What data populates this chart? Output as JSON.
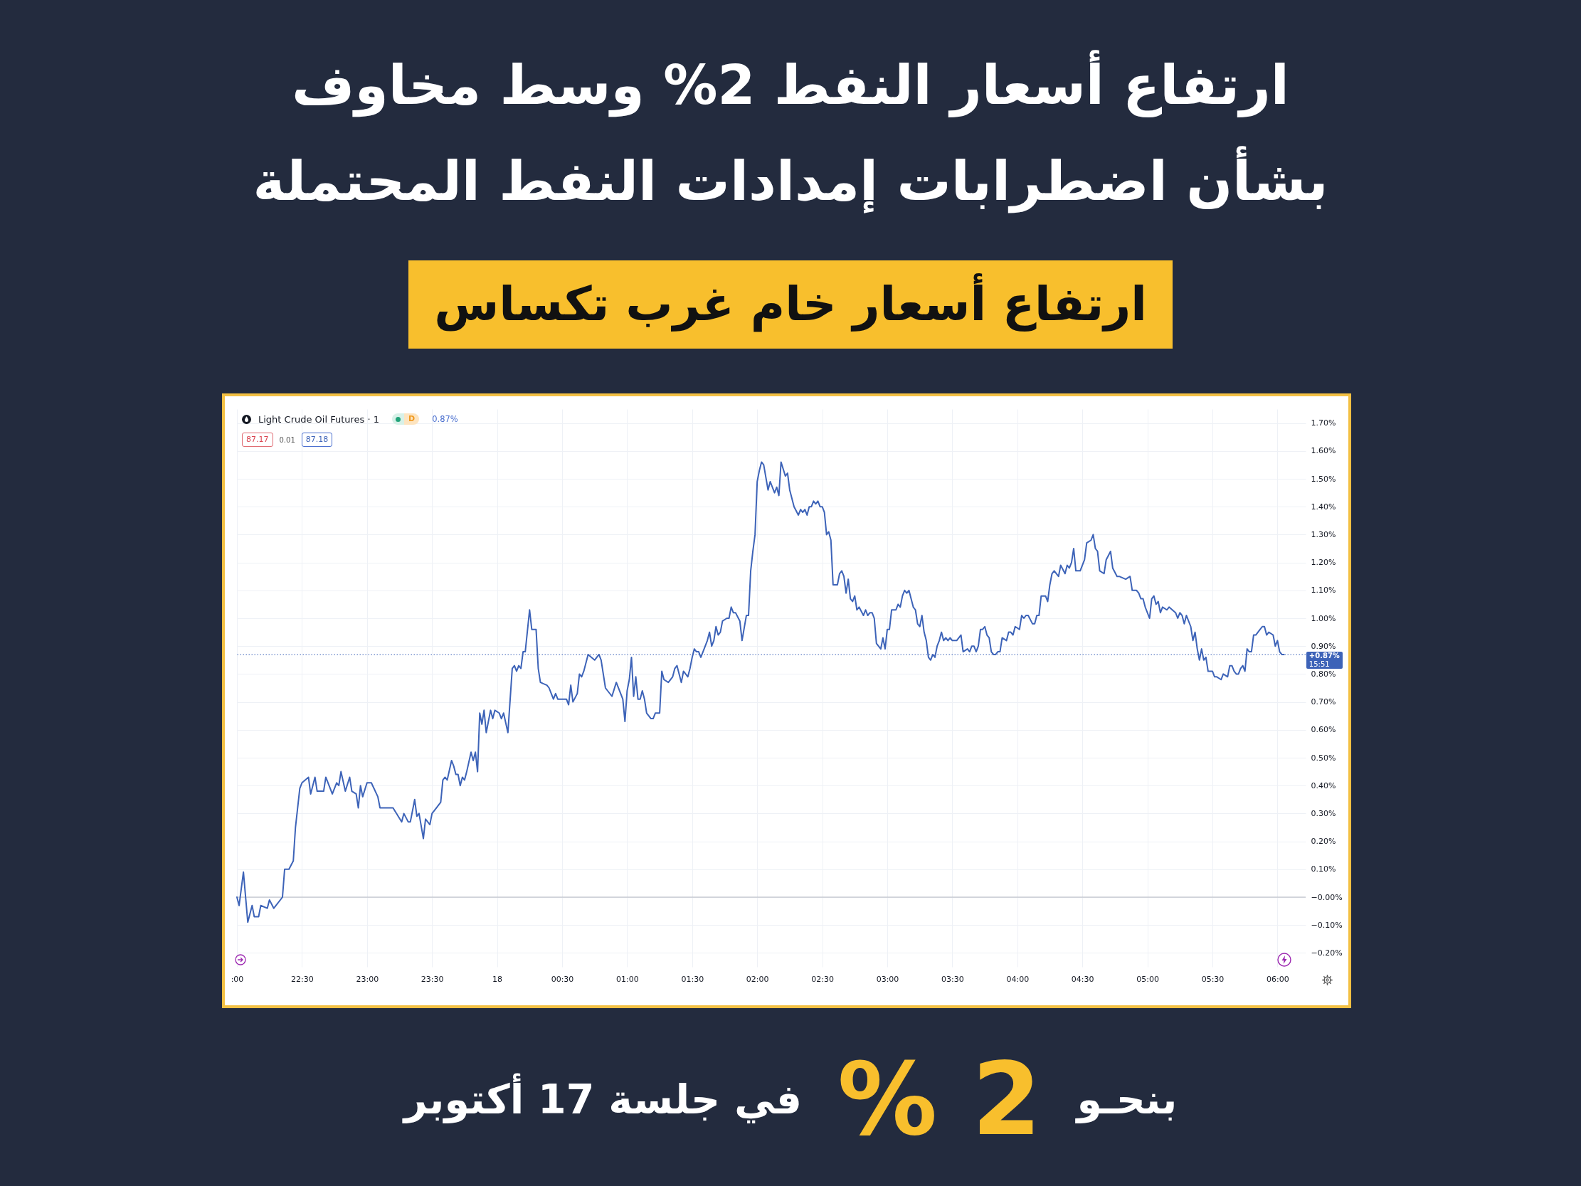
{
  "chart_data": {
    "type": "line",
    "title": "ارتفاع أسعار النفط 2% وسط مخاوف بشأن اضطرابات إمدادات النفط المحتملة",
    "subtitle": "ارتفاع أسعار خام غرب تكساس",
    "x": [
      "--10-17T22:00",
      "--10-17T22:01",
      "--10-17T22:03",
      "--10-17T22:05",
      "--10-17T22:07",
      "--10-17T22:08",
      "--10-17T22:10",
      "--10-17T22:11",
      "--10-17T22:14",
      "--10-17T22:15",
      "--10-17T22:17",
      "--10-17T22:21",
      "--10-17T22:22",
      "--10-17T22:24",
      "--10-17T22:26",
      "--10-17T22:27",
      "--10-17T22:29",
      "--10-17T22:30",
      "--10-17T22:33",
      "--10-17T22:34",
      "--10-17T22:36",
      "--10-17T22:37",
      "--10-17T22:40",
      "--10-17T22:41",
      "--10-17T22:44",
      "--10-17T22:46",
      "--10-17T22:47",
      "--10-17T22:48",
      "--10-17T22:50",
      "--10-17T22:52",
      "--10-17T22:53",
      "--10-17T22:55",
      "--10-17T22:56",
      "--10-17T22:57",
      "--10-17T22:58",
      "--10-17T23:00",
      "--10-17T23:02",
      "--10-17T23:05",
      "--10-17T23:06",
      "--10-17T23:12",
      "--10-17T23:16",
      "--10-17T23:17",
      "--10-17T23:19",
      "--10-17T23:20",
      "--10-17T23:22",
      "--10-17T23:23",
      "--10-17T23:24",
      "--10-17T23:26",
      "--10-17T23:27",
      "--10-17T23:29",
      "--10-17T23:30",
      "--10-17T23:32",
      "--10-17T23:34",
      "--10-17T23:35",
      "--10-17T23:36",
      "--10-17T23:37",
      "--10-17T23:39",
      "--10-17T23:40",
      "--10-17T23:41",
      "--10-17T23:42",
      "--10-17T23:43",
      "--10-17T23:44",
      "--10-17T23:45",
      "--10-17T23:46",
      "--10-17T23:48",
      "--10-17T23:49",
      "--10-17T23:50",
      "--10-17T23:51",
      "--10-17T23:52",
      "--10-17T23:53",
      "--10-17T23:54",
      "--10-17T23:55",
      "--10-17T23:56",
      "--10-17T23:57",
      "--10-17T23:58",
      "--10-17T23:59",
      "--10-18T00:01",
      "--10-18T00:02",
      "--10-18T00:03",
      "--10-18T00:05",
      "--10-18T00:07",
      "--10-18T00:08",
      "--10-18T00:09",
      "--10-18T00:10",
      "--10-18T00:11",
      "--10-18T00:12",
      "--10-18T00:13",
      "--10-18T00:15",
      "--10-18T00:16",
      "--10-18T00:18",
      "--10-18T00:19",
      "--10-18T00:20",
      "--10-18T00:23",
      "--10-18T00:24",
      "--10-18T00:25",
      "--10-18T00:26",
      "--10-18T00:27",
      "--10-18T00:28",
      "--10-18T00:32",
      "--10-18T00:33",
      "--10-18T00:34",
      "--10-18T00:35",
      "--10-18T00:37",
      "--10-18T00:38",
      "--10-18T00:39",
      "--10-18T00:40",
      "--10-18T00:42",
      "--10-18T00:45",
      "--10-18T00:47",
      "--10-18T00:48",
      "--10-18T00:50",
      "--10-18T00:53",
      "--10-18T00:55",
      "--10-18T00:58",
      "--10-18T00:59",
      "--10-18T01:00",
      "--10-18T01:01",
      "--10-18T01:02",
      "--10-18T01:03",
      "--10-18T01:04",
      "--10-18T01:05",
      "--10-18T01:06",
      "--10-18T01:07",
      "--10-18T01:08",
      "--10-18T01:09",
      "--10-18T01:11",
      "--10-18T01:12",
      "--10-18T01:13",
      "--10-18T01:15",
      "--10-18T01:16",
      "--10-18T01:17",
      "--10-18T01:19",
      "--10-18T01:21",
      "--10-18T01:22",
      "--10-18T01:23",
      "--10-18T01:25",
      "--10-18T01:26",
      "--10-18T01:28",
      "--10-18T01:29",
      "--10-18T01:30",
      "--10-18T01:31",
      "--10-18T01:32",
      "--10-18T01:33",
      "--10-18T01:34",
      "--10-18T01:35",
      "--10-18T01:37",
      "--10-18T01:38",
      "--10-18T01:39",
      "--10-18T01:40",
      "--10-18T01:41",
      "--10-18T01:42",
      "--10-18T01:43",
      "--10-18T01:44",
      "--10-18T01:46",
      "--10-18T01:47",
      "--10-18T01:48",
      "--10-18T01:49",
      "--10-18T01:50",
      "--10-18T01:52",
      "--10-18T01:53",
      "--10-18T01:55",
      "--10-18T01:56",
      "--10-18T01:57",
      "--10-18T01:58",
      "--10-18T01:59",
      "--10-18T02:00",
      "--10-18T02:01",
      "--10-18T02:02",
      "--10-18T02:03",
      "--10-18T02:05",
      "--10-18T02:06",
      "--10-18T02:07",
      "--10-18T02:08",
      "--10-18T02:09",
      "--10-18T02:10",
      "--10-18T02:11",
      "--10-18T02:13",
      "--10-18T02:14",
      "--10-18T02:15",
      "--10-18T02:17",
      "--10-18T02:19",
      "--10-18T02:20",
      "--10-18T02:21",
      "--10-18T02:22",
      "--10-18T02:23",
      "--10-18T02:24",
      "--10-18T02:25",
      "--10-18T02:26",
      "--10-18T02:27",
      "--10-18T02:28",
      "--10-18T02:29",
      "--10-18T02:30",
      "--10-18T02:31",
      "--10-18T02:32",
      "--10-18T02:33",
      "--10-18T02:34",
      "--10-18T02:35",
      "--10-18T02:37",
      "--10-18T02:38",
      "--10-18T02:39",
      "--10-18T02:40",
      "--10-18T02:41",
      "--10-18T02:42",
      "--10-18T02:43",
      "--10-18T02:44",
      "--10-18T02:45",
      "--10-18T02:46",
      "--10-18T02:47",
      "--10-18T02:49",
      "--10-18T02:50",
      "--10-18T02:51",
      "--10-18T02:52",
      "--10-18T02:53",
      "--10-18T02:54",
      "--10-18T02:55",
      "--10-18T02:57",
      "--10-18T02:58",
      "--10-18T02:59",
      "--10-18T03:00",
      "--10-18T03:01",
      "--10-18T03:02",
      "--10-18T03:04",
      "--10-18T03:05",
      "--10-18T03:06",
      "--10-18T03:07",
      "--10-18T03:08",
      "--10-18T03:09",
      "--10-18T03:10",
      "--10-18T03:12",
      "--10-18T03:13",
      "--10-18T03:14",
      "--10-18T03:15",
      "--10-18T03:16",
      "--10-18T03:17",
      "--10-18T03:18",
      "--10-18T03:19",
      "--10-18T03:20",
      "--10-18T03:21",
      "--10-18T03:22",
      "--10-18T03:23",
      "--10-18T03:24",
      "--10-18T03:25",
      "--10-18T03:26",
      "--10-18T03:27",
      "--10-18T03:28",
      "--10-18T03:29",
      "--10-18T03:30",
      "--10-18T03:32",
      "--10-18T03:34",
      "--10-18T03:35",
      "--10-18T03:37",
      "--10-18T03:38",
      "--10-18T03:39",
      "--10-18T03:40",
      "--10-18T03:41",
      "--10-18T03:42",
      "--10-18T03:43",
      "--10-18T03:44",
      "--10-18T03:45",
      "--10-18T03:46",
      "--10-18T03:47",
      "--10-18T03:48",
      "--10-18T03:49",
      "--10-18T03:50",
      "--10-18T03:51",
      "--10-18T03:52",
      "--10-18T03:53",
      "--10-18T03:55",
      "--10-18T03:56",
      "--10-18T03:57",
      "--10-18T03:58",
      "--10-18T03:59",
      "--10-18T04:01",
      "--10-18T04:02",
      "--10-18T04:03",
      "--10-18T04:04",
      "--10-18T04:05",
      "--10-18T04:07",
      "--10-18T04:08",
      "--10-18T04:09",
      "--10-18T04:10",
      "--10-18T04:11",
      "--10-18T04:13",
      "--10-18T04:14",
      "--10-18T04:15",
      "--10-18T04:16",
      "--10-18T04:17",
      "--10-18T04:19",
      "--10-18T04:20",
      "--10-18T04:22",
      "--10-18T04:23",
      "--10-18T04:24",
      "--10-18T04:25",
      "--10-18T04:26",
      "--10-18T04:27",
      "--10-18T04:29",
      "--10-18T04:31",
      "--10-18T04:32",
      "--10-18T04:34",
      "--10-18T04:35",
      "--10-18T04:36",
      "--10-18T04:37",
      "--10-18T04:38",
      "--10-18T04:40",
      "--10-18T04:41",
      "--10-18T04:43",
      "--10-18T04:44",
      "--10-18T04:46",
      "--10-18T04:47",
      "--10-18T04:50",
      "--10-18T04:52",
      "--10-18T04:53",
      "--10-18T04:55",
      "--10-18T04:56",
      "--10-18T04:57",
      "--10-18T04:58",
      "--10-18T04:59",
      "--10-18T05:01",
      "--10-18T05:02",
      "--10-18T05:03",
      "--10-18T05:04",
      "--10-18T05:05",
      "--10-18T05:06",
      "--10-18T05:07",
      "--10-18T05:09",
      "--10-18T05:10",
      "--10-18T05:13",
      "--10-18T05:14",
      "--10-18T05:15",
      "--10-18T05:16",
      "--10-18T05:17",
      "--10-18T05:18",
      "--10-18T05:20",
      "--10-18T05:21",
      "--10-18T05:22",
      "--10-18T05:23",
      "--10-18T05:24",
      "--10-18T05:25",
      "--10-18T05:26",
      "--10-18T05:27",
      "--10-18T05:28",
      "--10-18T05:30",
      "--10-18T05:31",
      "--10-18T05:32",
      "--10-18T05:34",
      "--10-18T05:35",
      "--10-18T05:37",
      "--10-18T05:38",
      "--10-18T05:39",
      "--10-18T05:40",
      "--10-18T05:41",
      "--10-18T05:42",
      "--10-18T05:43",
      "--10-18T05:44",
      "--10-18T05:45",
      "--10-18T05:46",
      "--10-18T05:47",
      "--10-18T05:48",
      "--10-18T05:49",
      "--10-18T05:50",
      "--10-18T05:52",
      "--10-18T05:53",
      "--10-18T05:54",
      "--10-18T05:55",
      "--10-18T05:56",
      "--10-18T05:58",
      "--10-18T05:59",
      "--10-18T06:00",
      "--10-18T06:01",
      "--10-18T06:02",
      "--10-18T06:03"
    ],
    "series": [
      {
        "color": "#3d63b8",
        "values": [
          0,
          -0.03,
          0.09,
          -0.09,
          -0.03,
          -0.07,
          -0.07,
          -0.03,
          -0.04,
          -0.01,
          -0.04,
          0,
          0.1,
          0.1,
          0.13,
          0.25,
          0.39,
          0.41,
          0.43,
          0.37,
          0.43,
          0.38,
          0.38,
          0.43,
          0.37,
          0.41,
          0.4,
          0.45,
          0.38,
          0.43,
          0.38,
          0.37,
          0.32,
          0.4,
          0.36,
          0.41,
          0.41,
          0.36,
          0.32,
          0.32,
          0.27,
          0.3,
          0.27,
          0.27,
          0.35,
          0.29,
          0.3,
          0.21,
          0.28,
          0.26,
          0.3,
          0.32,
          0.34,
          0.42,
          0.43,
          0.42,
          0.49,
          0.47,
          0.44,
          0.44,
          0.4,
          0.43,
          0.42,
          0.45,
          0.52,
          0.49,
          0.52,
          0.45,
          0.66,
          0.62,
          0.67,
          0.59,
          0.63,
          0.67,
          0.64,
          0.67,
          0.66,
          0.64,
          0.66,
          0.59,
          0.82,
          0.83,
          0.81,
          0.83,
          0.82,
          0.88,
          0.88,
          1.03,
          0.96,
          0.96,
          0.82,
          0.77,
          0.76,
          0.75,
          0.73,
          0.71,
          0.73,
          0.71,
          0.71,
          0.69,
          0.76,
          0.7,
          0.73,
          0.8,
          0.79,
          0.81,
          0.87,
          0.85,
          0.87,
          0.85,
          0.75,
          0.72,
          0.77,
          0.71,
          0.63,
          0.74,
          0.78,
          0.86,
          0.72,
          0.79,
          0.71,
          0.71,
          0.74,
          0.71,
          0.66,
          0.64,
          0.64,
          0.66,
          0.66,
          0.81,
          0.78,
          0.77,
          0.79,
          0.82,
          0.83,
          0.77,
          0.81,
          0.79,
          0.82,
          0.86,
          0.89,
          0.88,
          0.88,
          0.86,
          0.88,
          0.92,
          0.95,
          0.9,
          0.92,
          0.97,
          0.94,
          0.95,
          0.99,
          1,
          1,
          1.04,
          1.02,
          1.02,
          0.99,
          0.92,
          1.01,
          1.01,
          1.17,
          1.24,
          1.3,
          1.49,
          1.53,
          1.56,
          1.55,
          1.46,
          1.49,
          1.47,
          1.45,
          1.47,
          1.44,
          1.56,
          1.51,
          1.52,
          1.46,
          1.4,
          1.37,
          1.39,
          1.38,
          1.39,
          1.37,
          1.4,
          1.4,
          1.42,
          1.41,
          1.42,
          1.4,
          1.4,
          1.38,
          1.3,
          1.31,
          1.28,
          1.12,
          1.12,
          1.16,
          1.17,
          1.15,
          1.09,
          1.14,
          1.07,
          1.06,
          1.08,
          1.03,
          1.04,
          1.01,
          1.03,
          1.01,
          1.02,
          1.02,
          1,
          0.91,
          0.89,
          0.93,
          0.89,
          0.96,
          0.96,
          1.03,
          1.03,
          1.05,
          1.04,
          1.08,
          1.1,
          1.09,
          1.1,
          1.04,
          1.03,
          0.98,
          0.97,
          1.01,
          0.95,
          0.92,
          0.86,
          0.85,
          0.87,
          0.86,
          0.9,
          0.92,
          0.95,
          0.92,
          0.93,
          0.92,
          0.93,
          0.92,
          0.92,
          0.94,
          0.88,
          0.89,
          0.88,
          0.9,
          0.9,
          0.88,
          0.9,
          0.96,
          0.96,
          0.97,
          0.94,
          0.93,
          0.88,
          0.87,
          0.87,
          0.88,
          0.88,
          0.93,
          0.92,
          0.95,
          0.95,
          0.94,
          0.97,
          0.96,
          1.01,
          1,
          1.01,
          1.01,
          0.98,
          0.98,
          1.01,
          1.01,
          1.08,
          1.08,
          1.06,
          1.12,
          1.16,
          1.17,
          1.15,
          1.19,
          1.16,
          1.19,
          1.18,
          1.2,
          1.25,
          1.17,
          1.17,
          1.21,
          1.27,
          1.28,
          1.3,
          1.25,
          1.24,
          1.17,
          1.16,
          1.21,
          1.24,
          1.18,
          1.15,
          1.15,
          1.14,
          1.15,
          1.1,
          1.1,
          1.09,
          1.07,
          1.07,
          1.04,
          1,
          1.07,
          1.08,
          1.05,
          1.06,
          1.02,
          1.04,
          1.03,
          1.04,
          1.02,
          1,
          1.02,
          1.01,
          0.98,
          1.01,
          0.97,
          0.92,
          0.95,
          0.89,
          0.85,
          0.89,
          0.85,
          0.86,
          0.81,
          0.81,
          0.79,
          0.79,
          0.78,
          0.8,
          0.79,
          0.83,
          0.83,
          0.81,
          0.8,
          0.8,
          0.82,
          0.83,
          0.81,
          0.89,
          0.88,
          0.88,
          0.94,
          0.94,
          0.96,
          0.97,
          0.97,
          0.94,
          0.95,
          0.94,
          0.9,
          0.92,
          0.88,
          0.87,
          0.87
        ]
      }
    ],
    "xlim": [
      "--10-17T22:00",
      "--10-18T06:13"
    ],
    "xticks": [
      {
        "value": "--10-17T22:00",
        "label": ":00"
      },
      {
        "value": "--10-17T22:30",
        "label": "22:30"
      },
      {
        "value": "--10-17T23:00",
        "label": "23:00"
      },
      {
        "value": "--10-17T23:30",
        "label": "23:30"
      },
      {
        "value": "--10-18T00:00",
        "label": "18"
      },
      {
        "value": "--10-18T00:30",
        "label": "00:30"
      },
      {
        "value": "--10-18T01:00",
        "label": "01:00"
      },
      {
        "value": "--10-18T01:30",
        "label": "01:30"
      },
      {
        "value": "--10-18T02:00",
        "label": "02:00"
      },
      {
        "value": "--10-18T02:30",
        "label": "02:30"
      },
      {
        "value": "--10-18T03:00",
        "label": "03:00"
      },
      {
        "value": "--10-18T03:30",
        "label": "03:30"
      },
      {
        "value": "--10-18T04:00",
        "label": "04:00"
      },
      {
        "value": "--10-18T04:30",
        "label": "04:30"
      },
      {
        "value": "--10-18T05:00",
        "label": "05:00"
      },
      {
        "value": "--10-18T05:30",
        "label": "05:30"
      },
      {
        "value": "--10-18T06:00",
        "label": "06:00"
      }
    ],
    "ylim": [
      -0.25,
      1.75
    ],
    "yticks": [
      {
        "value": -0.2,
        "label": "−0.20%"
      },
      {
        "value": -0.1,
        "label": "−0.10%"
      },
      {
        "value": 0,
        "label": "−0.00%"
      },
      {
        "value": 0.1,
        "label": "0.10%"
      },
      {
        "value": 0.2,
        "label": "0.20%"
      },
      {
        "value": 0.3,
        "label": "0.30%"
      },
      {
        "value": 0.4,
        "label": "0.40%"
      },
      {
        "value": 0.5,
        "label": "0.50%"
      },
      {
        "value": 0.6,
        "label": "0.60%"
      },
      {
        "value": 0.7,
        "label": "0.70%"
      },
      {
        "value": 0.8,
        "label": "0.80%"
      },
      {
        "value": 0.9,
        "label": "0.90%"
      },
      {
        "value": 1,
        "label": "1.00%"
      },
      {
        "value": 1.1,
        "label": "1.10%"
      },
      {
        "value": 1.2,
        "label": "1.20%"
      },
      {
        "value": 1.3,
        "label": "1.30%"
      },
      {
        "value": 1.4,
        "label": "1.40%"
      },
      {
        "value": 1.5,
        "label": "1.50%"
      },
      {
        "value": 1.6,
        "label": "1.60%"
      },
      {
        "value": 1.7,
        "label": "1.70%"
      }
    ],
    "grid": true,
    "ref_lines": [
      {
        "axis": "y",
        "value": 0,
        "color": "#b2b5be"
      },
      {
        "axis": "y",
        "value": 0.87,
        "label": "+0.87%",
        "color": "#3d63b8",
        "line_style": "dotted"
      }
    ],
    "annotations": [
      "Light Crude Oil Futures · 1",
      "D",
      "0.87%",
      "87.17",
      "0.01",
      "87.18",
      "15:51",
      "بنحـو",
      "2 %",
      "في جلسة 17 أكتوبر"
    ]
  }
}
